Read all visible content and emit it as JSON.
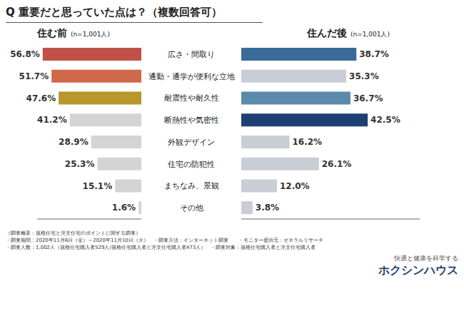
{
  "chart_data": {
    "type": "bar",
    "orientation": "horizontal",
    "title": "Q 重要だと思っていた点は？（複数回答可）",
    "categories": [
      "広さ・間取り",
      "通勤・通学が便利な立地",
      "耐震性や耐久性",
      "断熱性や気密性",
      "外観デザイン",
      "住宅の防犯性",
      "まちなみ、景観",
      "その他"
    ],
    "series": [
      {
        "name": "住む前",
        "colors": [
          "#c05148",
          "#d0684a",
          "#b8972b",
          "#d4d4d4",
          "#d4d4d4",
          "#d4d4d4",
          "#d4d4d4",
          "#d4d4d4"
        ],
        "values": [
          56.8,
          51.7,
          47.6,
          41.2,
          28.9,
          25.3,
          15.1,
          1.6
        ],
        "value_labels": [
          "56.8%",
          "51.7%",
          "47.6%",
          "41.2%",
          "28.9%",
          "25.3%",
          "15.1%",
          "1.6%"
        ]
      },
      {
        "name": "住んだ後",
        "colors": [
          "#3a6b9a",
          "#c8cdd6",
          "#5b8aab",
          "#1e3f72",
          "#c8cdd6",
          "#c8cdd6",
          "#c8cdd6",
          "#c8cdd6"
        ],
        "values": [
          38.7,
          35.3,
          36.7,
          42.5,
          16.2,
          26.1,
          12.0,
          3.8
        ],
        "value_labels": [
          "38.7%",
          "35.3%",
          "36.7%",
          "42.5%",
          "16.2%",
          "26.1%",
          "12.0%",
          "3.8%"
        ]
      }
    ],
    "xlim": [
      0,
      60
    ],
    "tick_labels": false,
    "data_labels": true,
    "annotations": [
      "(n=1,001人)",
      "(n=1,001人)",
      "（調査概要：規格住宅と注文住宅のポイントに関する調査）",
      "・調査期間：2020年11月6日（金）～2020年11月10日（火）　・調査方法：インターネット調査　　・モニター提供元：ゼネラルリサーチ",
      "・調査人数：1,002人（規格住宅購入者529人/規格住宅購入者と注文住宅購入者473人）　・調査対象：規格住宅購入者と注文住宅購入者",
      "快適と健康を科学する",
      "ホクシンハウス"
    ]
  }
}
